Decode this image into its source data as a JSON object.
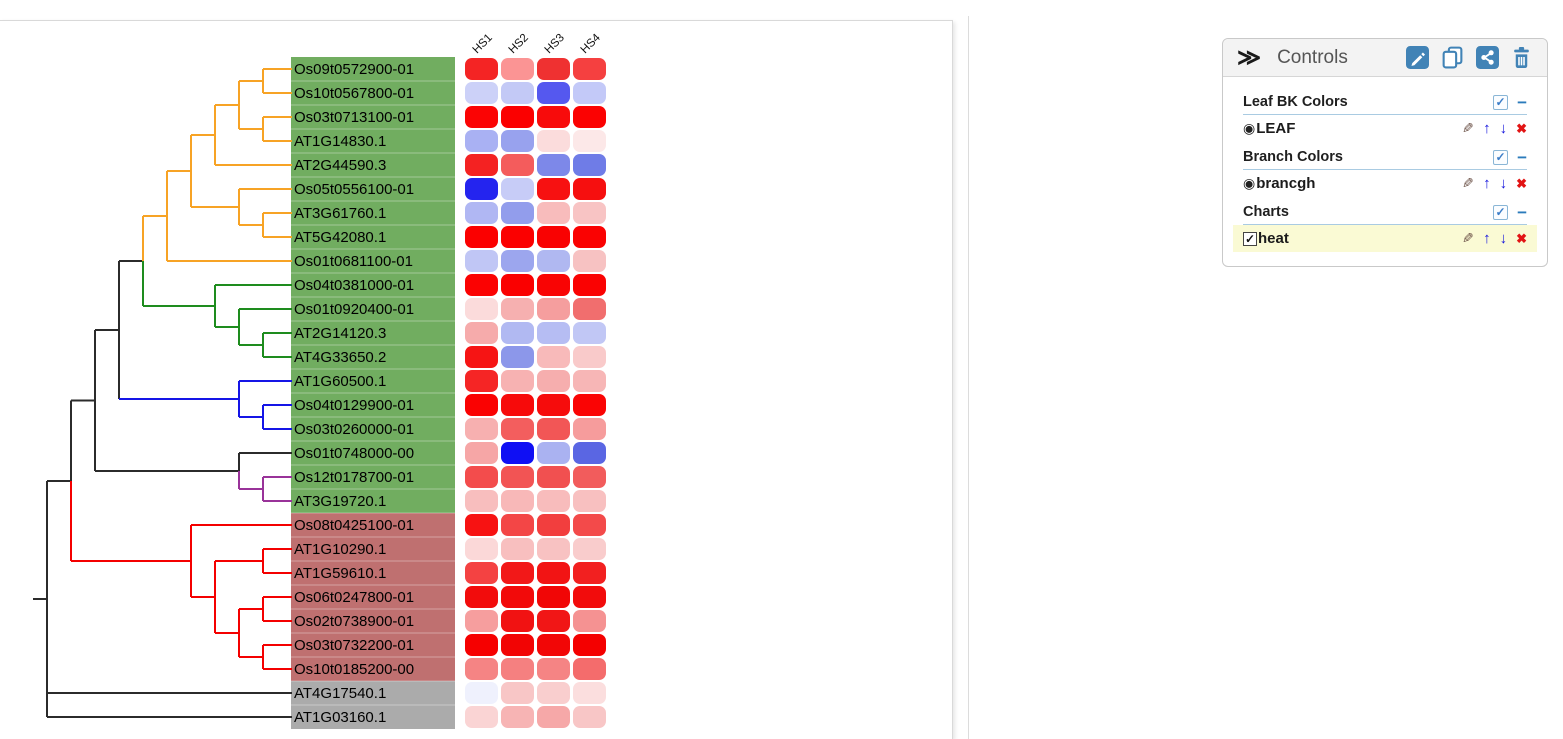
{
  "heatmap": {
    "columns": [
      "HS1",
      "HS2",
      "HS3",
      "HS4"
    ]
  },
  "leaves": [
    {
      "label": "Os09t0572900-01",
      "bg": "green",
      "branch": "orange",
      "cells": [
        "#f42424",
        "#fb9494",
        "#ef3131",
        "#f54040"
      ]
    },
    {
      "label": "Os10t0567800-01",
      "bg": "green",
      "branch": "orange",
      "cells": [
        "#ccd1f8",
        "#c3c9f6",
        "#5558ef",
        "#c3c9f8"
      ]
    },
    {
      "label": "Os03t0713100-01",
      "bg": "green",
      "branch": "orange",
      "cells": [
        "#fb0404",
        "#fb0000",
        "#f80b0b",
        "#fb0202"
      ]
    },
    {
      "label": "AT1G14830.1",
      "bg": "green",
      "branch": "orange",
      "cells": [
        "#a9b1f3",
        "#98a2ee",
        "#fbdcdc",
        "#fce8e8"
      ]
    },
    {
      "label": "AT2G44590.3",
      "bg": "green",
      "branch": "orange",
      "cells": [
        "#f42222",
        "#f45c5c",
        "#7d88e9",
        "#6f7ce7"
      ]
    },
    {
      "label": "Os05t0556100-01",
      "bg": "green",
      "branch": "orange",
      "cells": [
        "#2424ef",
        "#c7ccf7",
        "#f71111",
        "#f60f0f"
      ]
    },
    {
      "label": "AT3G61760.1",
      "bg": "green",
      "branch": "orange",
      "cells": [
        "#b0b7f3",
        "#929dec",
        "#f8bcbc",
        "#f8c4c4"
      ]
    },
    {
      "label": "AT5G42080.1",
      "bg": "green",
      "branch": "orange",
      "cells": [
        "#fb0000",
        "#fb0000",
        "#f90202",
        "#fa0202"
      ]
    },
    {
      "label": "Os01t0681100-01",
      "bg": "green",
      "branch": "orange",
      "cells": [
        "#c0c6f5",
        "#9ca6ee",
        "#b0b8f1",
        "#f7c2c2"
      ]
    },
    {
      "label": "Os04t0381000-01",
      "bg": "green",
      "branch": "green",
      "cells": [
        "#fb0202",
        "#fa0000",
        "#f90404",
        "#fa0202"
      ]
    },
    {
      "label": "Os01t0920400-01",
      "bg": "green",
      "branch": "green",
      "cells": [
        "#fbdbdb",
        "#f6b0b0",
        "#f59e9e",
        "#f16e6e"
      ]
    },
    {
      "label": "AT2G14120.3",
      "bg": "green",
      "branch": "green",
      "cells": [
        "#f6abab",
        "#b1b9f2",
        "#b6bdf3",
        "#c1c7f5"
      ]
    },
    {
      "label": "AT4G33650.2",
      "bg": "green",
      "branch": "green",
      "cells": [
        "#f61414",
        "#8c97ea",
        "#f8baba",
        "#f9caca"
      ]
    },
    {
      "label": "AT1G60500.1",
      "bg": "green",
      "branch": "blue",
      "cells": [
        "#f52525",
        "#f7b2b2",
        "#f6aeae",
        "#f7b6b6"
      ]
    },
    {
      "label": "Os04t0129900-01",
      "bg": "green",
      "branch": "blue",
      "cells": [
        "#fa0202",
        "#f70a0a",
        "#f60c0c",
        "#fa0404"
      ]
    },
    {
      "label": "Os03t0260000-01",
      "bg": "green",
      "branch": "blue",
      "cells": [
        "#f7b0b0",
        "#f35e5e",
        "#f25656",
        "#f69c9c"
      ]
    },
    {
      "label": "Os01t0748000-00",
      "bg": "green",
      "branch": "black",
      "cells": [
        "#f6a6a6",
        "#0f0ff4",
        "#aab2f1",
        "#5a66e3"
      ]
    },
    {
      "label": "Os12t0178700-01",
      "bg": "green",
      "branch": "purple",
      "cells": [
        "#f34c4c",
        "#f25454",
        "#f15050",
        "#f25c5c"
      ]
    },
    {
      "label": "AT3G19720.1",
      "bg": "green",
      "branch": "purple",
      "cells": [
        "#f8bebe",
        "#f8b8b8",
        "#f8bcbc",
        "#f8c0c0"
      ]
    },
    {
      "label": "Os08t0425100-01",
      "bg": "maroon",
      "branch": "red",
      "cells": [
        "#f71212",
        "#f34646",
        "#f23e3e",
        "#f34a4a"
      ]
    },
    {
      "label": "AT1G10290.1",
      "bg": "maroon",
      "branch": "red",
      "cells": [
        "#fbd8d8",
        "#f8bfbf",
        "#f8c2c2",
        "#f9cccc"
      ]
    },
    {
      "label": "AT1G59610.1",
      "bg": "maroon",
      "branch": "red",
      "cells": [
        "#f44242",
        "#f21818",
        "#f21414",
        "#f22020"
      ]
    },
    {
      "label": "Os06t0247800-01",
      "bg": "maroon",
      "branch": "red",
      "cells": [
        "#f20c0c",
        "#f20a0a",
        "#f10606",
        "#f20c0c"
      ]
    },
    {
      "label": "Os02t0738900-01",
      "bg": "maroon",
      "branch": "red",
      "cells": [
        "#f69e9e",
        "#f11212",
        "#f11616",
        "#f59292"
      ]
    },
    {
      "label": "Os03t0732200-01",
      "bg": "maroon",
      "branch": "red",
      "cells": [
        "#f60000",
        "#f20404",
        "#f20606",
        "#f40000"
      ]
    },
    {
      "label": "Os10t0185200-00",
      "bg": "maroon",
      "branch": "red",
      "cells": [
        "#f58484",
        "#f58080",
        "#f58484",
        "#f46c6c"
      ]
    },
    {
      "label": "AT4G17540.1",
      "bg": "gray",
      "branch": "black",
      "cells": [
        "#eff1fd",
        "#f8c6c6",
        "#f9cece",
        "#fbdede"
      ]
    },
    {
      "label": "AT1G03160.1",
      "bg": "gray",
      "branch": "black",
      "cells": [
        "#fad4d4",
        "#f7b4b4",
        "#f6a8a8",
        "#f8c6c6"
      ]
    }
  ],
  "tree": {
    "colors": {
      "orange": "#f7a325",
      "green": "#1e8c1e",
      "blue": "#1515e6",
      "black": "#2b2b2b",
      "purple": "#993399",
      "red": "#f40000"
    },
    "label_bg": {
      "green": "#71ad60",
      "maroon": "#bf7070",
      "gray": "#ababab"
    },
    "topology": {
      "edge": "black",
      "children": [
        {
          "edge": "black",
          "children": [
            {
              "edge": "black",
              "children": [
                {
                  "edge": "black",
                  "children": [
                    {
                      "edge": "black",
                      "children": [
                        {
                          "edge": "orange",
                          "children": [
                            {
                              "edge": "orange",
                              "children": [
                                {
                                  "edge": "orange",
                                  "children": [
                                    {
                                      "edge": "orange",
                                      "children": [
                                        {
                                          "edge": "orange",
                                          "children": [
                                            {
                                              "leaf": 0
                                            },
                                            {
                                              "leaf": 1
                                            }
                                          ]
                                        },
                                        {
                                          "edge": "orange",
                                          "children": [
                                            {
                                              "leaf": 2
                                            },
                                            {
                                              "leaf": 3
                                            }
                                          ]
                                        }
                                      ]
                                    },
                                    {
                                      "leaf": 4
                                    }
                                  ]
                                },
                                {
                                  "edge": "orange",
                                  "children": [
                                    {
                                      "leaf": 5
                                    },
                                    {
                                      "edge": "orange",
                                      "children": [
                                        {
                                          "leaf": 6
                                        },
                                        {
                                          "leaf": 7
                                        }
                                      ]
                                    }
                                  ]
                                }
                              ]
                            },
                            {
                              "leaf": 8
                            }
                          ]
                        },
                        {
                          "edge": "green",
                          "children": [
                            {
                              "leaf": 9
                            },
                            {
                              "edge": "green",
                              "children": [
                                {
                                  "leaf": 10
                                },
                                {
                                  "edge": "green",
                                  "children": [
                                    {
                                      "leaf": 11
                                    },
                                    {
                                      "leaf": 12
                                    }
                                  ]
                                }
                              ]
                            }
                          ]
                        }
                      ]
                    },
                    {
                      "edge": "blue",
                      "vedge": "black",
                      "children": [
                        {
                          "leaf": 13
                        },
                        {
                          "edge": "blue",
                          "children": [
                            {
                              "leaf": 14
                            },
                            {
                              "leaf": 15
                            }
                          ]
                        }
                      ]
                    }
                  ]
                },
                {
                  "edge": "black",
                  "children": [
                    {
                      "leaf": 16
                    },
                    {
                      "edge": "purple",
                      "children": [
                        {
                          "leaf": 17
                        },
                        {
                          "leaf": 18
                        }
                      ]
                    }
                  ]
                }
              ]
            },
            {
              "edge": "red",
              "children": [
                {
                  "leaf": 19
                },
                {
                  "edge": "red",
                  "children": [
                    {
                      "edge": "red",
                      "children": [
                        {
                          "leaf": 20
                        },
                        {
                          "leaf": 21
                        }
                      ]
                    },
                    {
                      "edge": "red",
                      "children": [
                        {
                          "edge": "red",
                          "children": [
                            {
                              "leaf": 22
                            },
                            {
                              "leaf": 23
                            }
                          ]
                        },
                        {
                          "edge": "red",
                          "children": [
                            {
                              "leaf": 24
                            },
                            {
                              "leaf": 25
                            }
                          ]
                        }
                      ]
                    }
                  ]
                }
              ]
            }
          ]
        },
        {
          "leaf": 26
        },
        {
          "leaf": 27
        }
      ]
    }
  },
  "controls": {
    "collapse_icon": "≫",
    "title": "Controls",
    "header_icons": [
      "edit-icon",
      "copy-icon",
      "share-icon",
      "trash-icon"
    ],
    "glyphs": {
      "pencil": "✎",
      "up": "↑",
      "down": "↓",
      "delete": "✖",
      "check": "✓",
      "radio": "◉",
      "minus": "−"
    },
    "sections": [
      {
        "title": "Leaf BK Colors",
        "checked": true,
        "items": [
          {
            "type": "radio",
            "label": "LEAF",
            "selected": true,
            "highlighted": false
          }
        ]
      },
      {
        "title": "Branch Colors",
        "checked": true,
        "items": [
          {
            "type": "radio",
            "label": "brancgh",
            "selected": true,
            "highlighted": false
          }
        ]
      },
      {
        "title": "Charts",
        "checked": true,
        "items": [
          {
            "type": "checkbox",
            "label": "heat",
            "checked": true,
            "highlighted": true
          }
        ]
      }
    ],
    "accent_blue": "#4183b6",
    "highlight_yellow": "#fafad4"
  }
}
